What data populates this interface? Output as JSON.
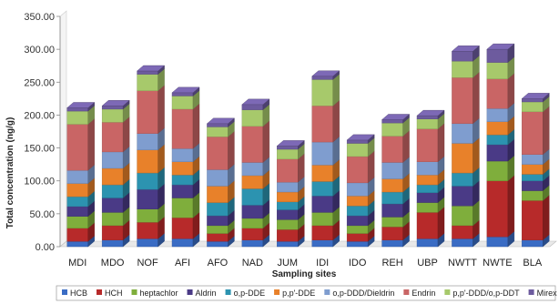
{
  "chart_data": {
    "type": "bar",
    "stacked": true,
    "style": "3d-column",
    "title": "",
    "xlabel": "Sampling sites",
    "ylabel": "Total concentration (ng/g)",
    "ylim": [
      0,
      350
    ],
    "ytick_step": 50,
    "ytick_labels": [
      "0.00",
      "50.00",
      "100.00",
      "150.00",
      "200.00",
      "250.00",
      "300.00",
      "350.00"
    ],
    "grid": false,
    "legend_position": "bottom",
    "categories": [
      "MDI",
      "MDO",
      "NOF",
      "AFI",
      "AFO",
      "NAD",
      "JUM",
      "IDI",
      "IDO",
      "REH",
      "UBP",
      "NWTT",
      "NWTE",
      "BLA"
    ],
    "series": [
      {
        "name": "HCB",
        "color": "#3a6cc4",
        "values": [
          8,
          10,
          12,
          12,
          8,
          10,
          8,
          10,
          8,
          10,
          12,
          12,
          15,
          10
        ]
      },
      {
        "name": "HCH",
        "color": "#b72a2a",
        "values": [
          20,
          22,
          25,
          32,
          12,
          18,
          18,
          22,
          12,
          20,
          40,
          20,
          85,
          60
        ]
      },
      {
        "name": "heptachlor",
        "color": "#7fae3c",
        "values": [
          18,
          20,
          20,
          30,
          12,
          15,
          15,
          20,
          12,
          15,
          15,
          30,
          30,
          15
        ]
      },
      {
        "name": "Aldrin",
        "color": "#4a3a86",
        "values": [
          15,
          22,
          30,
          20,
          15,
          20,
          15,
          25,
          15,
          20,
          15,
          30,
          25,
          15
        ]
      },
      {
        "name": "o,p-DDE",
        "color": "#2c93b0",
        "values": [
          15,
          20,
          25,
          15,
          20,
          25,
          12,
          22,
          15,
          18,
          12,
          20,
          15,
          10
        ]
      },
      {
        "name": "p,p'-DDE",
        "color": "#e8812a",
        "values": [
          20,
          25,
          35,
          20,
          25,
          20,
          15,
          25,
          15,
          20,
          15,
          45,
          20,
          15
        ]
      },
      {
        "name": "o,p-DDD/Dieldrin",
        "color": "#7f9dcf",
        "values": [
          20,
          25,
          25,
          20,
          25,
          20,
          15,
          35,
          20,
          25,
          20,
          30,
          20,
          15
        ]
      },
      {
        "name": "Endrin",
        "color": "#c96565",
        "values": [
          70,
          45,
          65,
          60,
          50,
          55,
          35,
          55,
          40,
          40,
          50,
          70,
          45,
          65
        ]
      },
      {
        "name": "p,p'-DDD/o,p-DDT",
        "color": "#a7c96b",
        "values": [
          20,
          20,
          25,
          20,
          15,
          25,
          15,
          40,
          20,
          20,
          15,
          25,
          25,
          15
        ]
      },
      {
        "name": "Mirex",
        "color": "#6d5b9e",
        "values": [
          5,
          5,
          5,
          5,
          5,
          8,
          5,
          5,
          5,
          5,
          5,
          15,
          20,
          5
        ]
      }
    ]
  }
}
